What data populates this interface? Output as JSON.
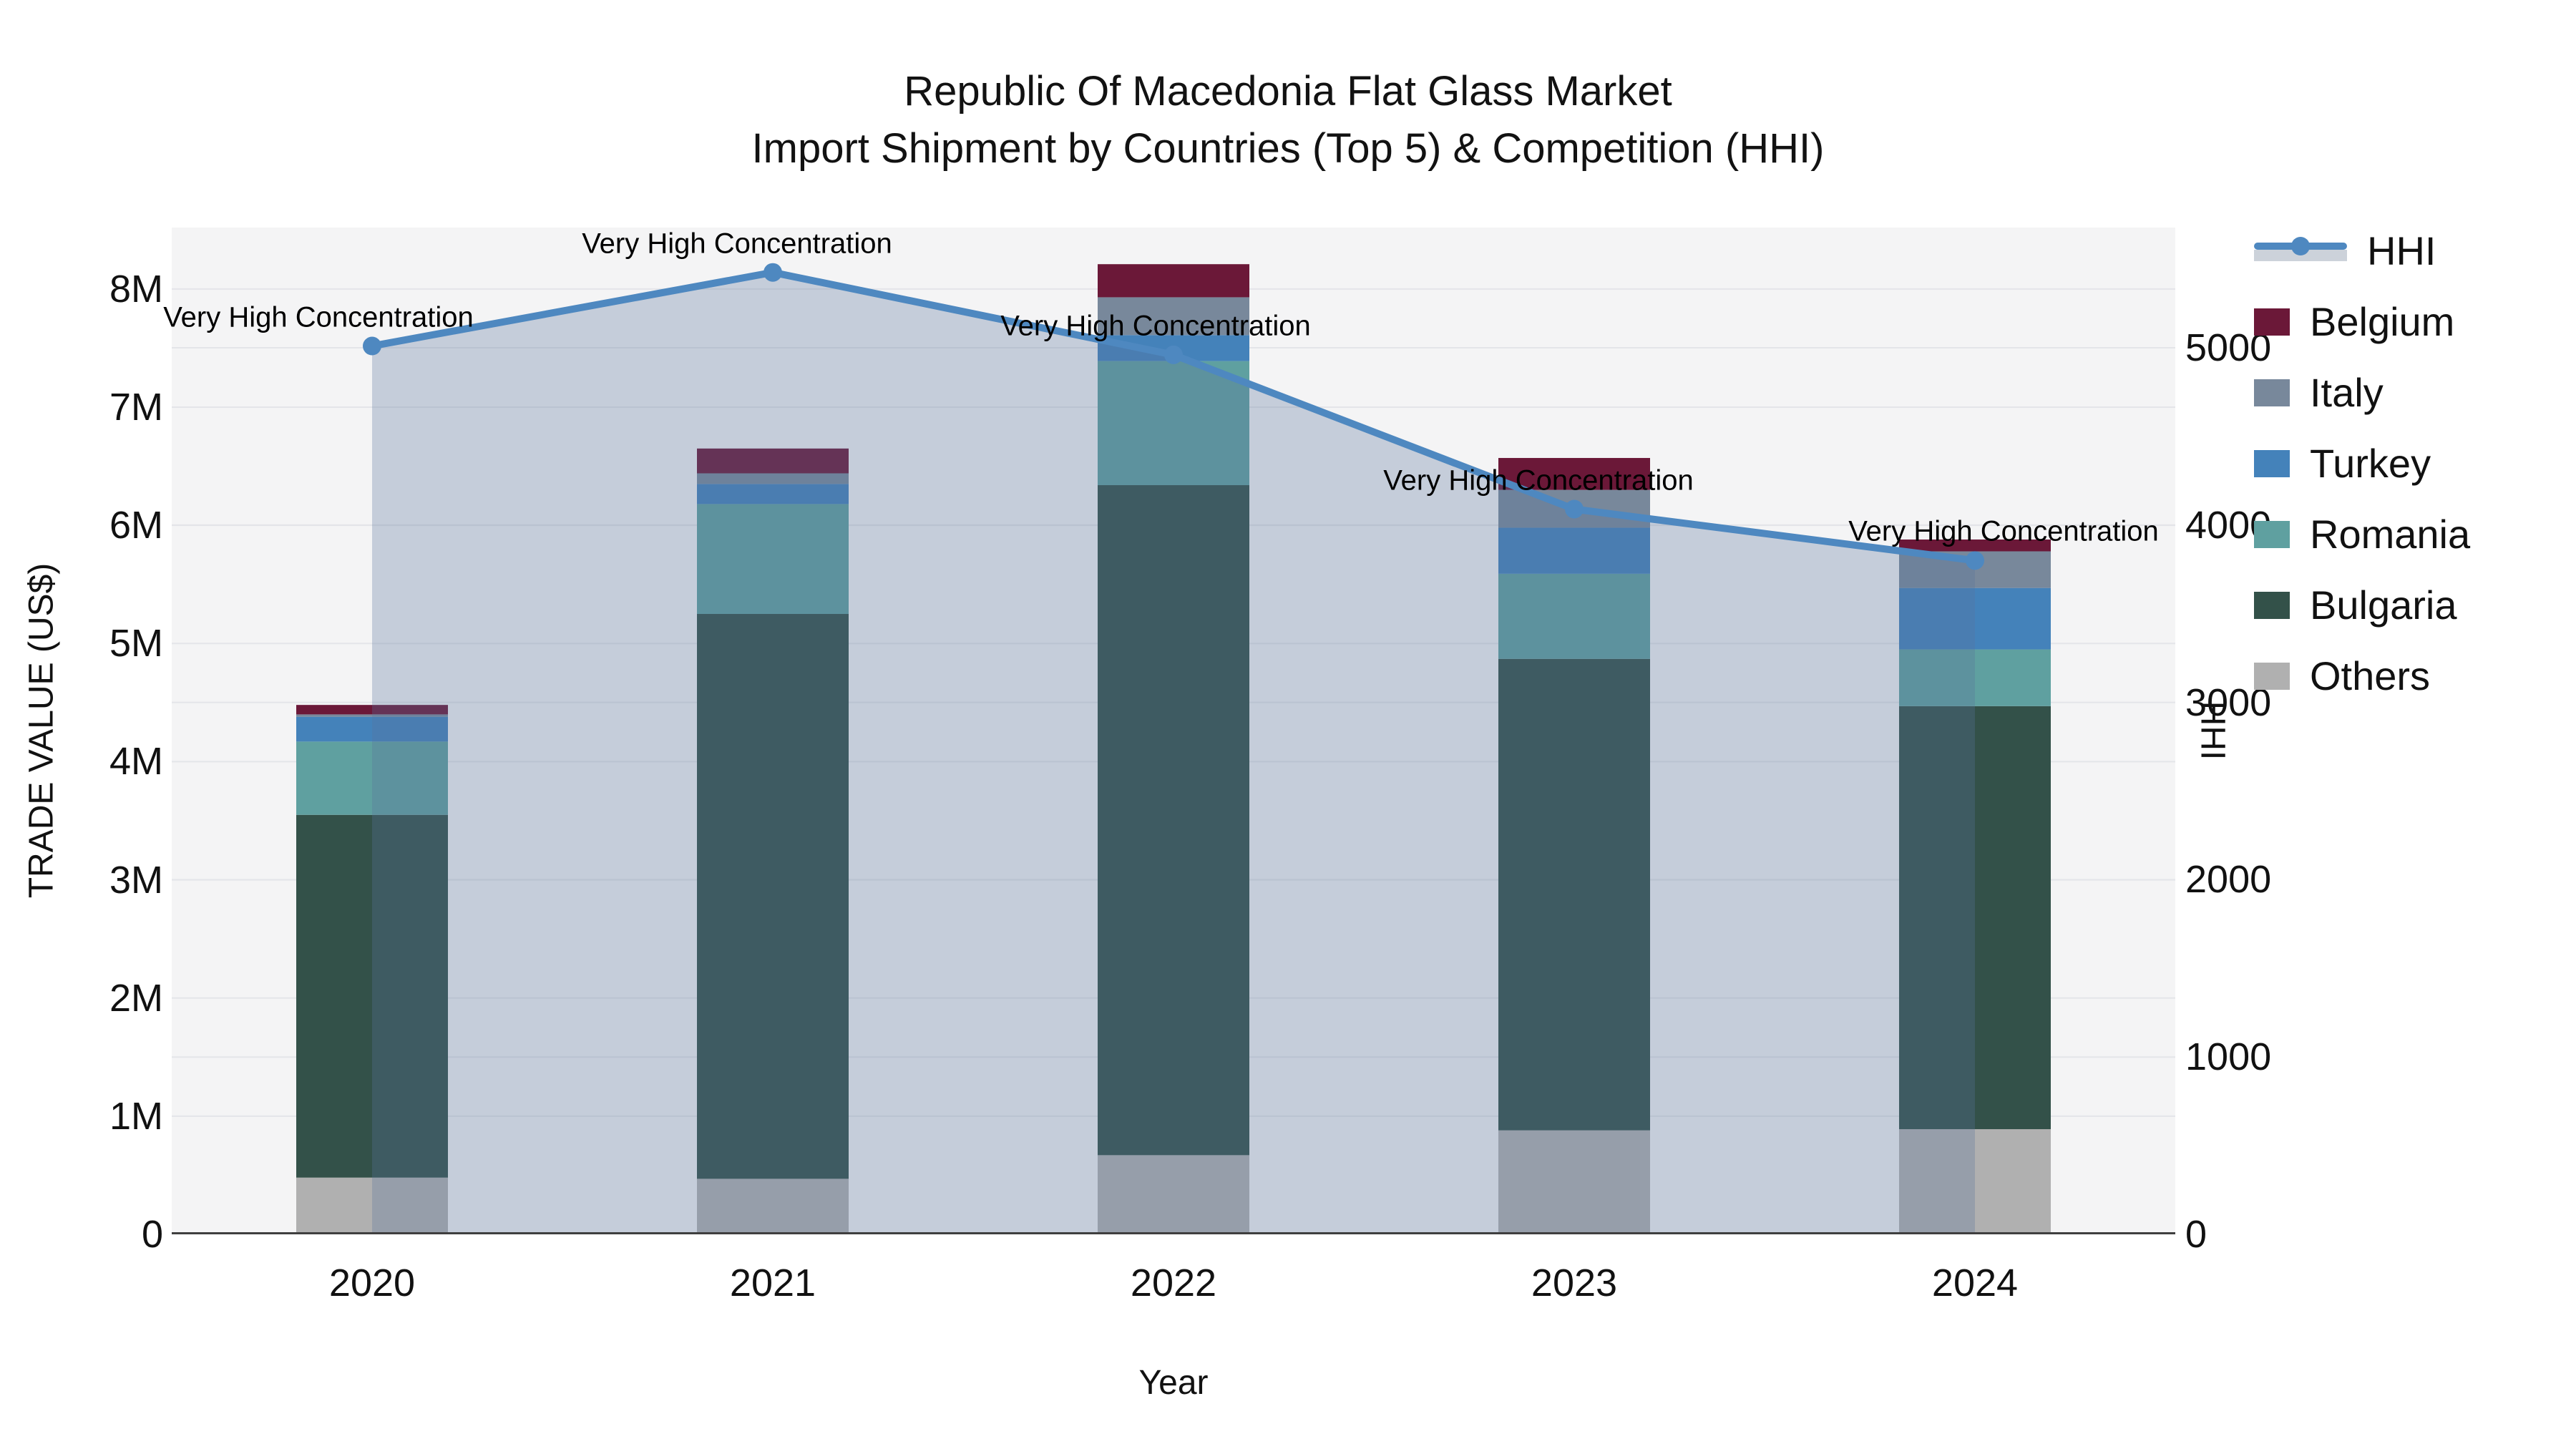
{
  "title": {
    "line1": "Republic Of Macedonia Flat Glass Market",
    "line2": "Import Shipment by Countries (Top 5) & Competition (HHI)"
  },
  "axes": {
    "x": {
      "title": "Year",
      "categories": [
        "2020",
        "2021",
        "2022",
        "2023",
        "2024"
      ]
    },
    "y_left": {
      "title": "TRADE VALUE (US$)",
      "ticks": [
        "0",
        "1M",
        "2M",
        "3M",
        "4M",
        "5M",
        "6M",
        "7M",
        "8M"
      ],
      "max_value_m": 8.52
    },
    "y_right": {
      "title": "HHI",
      "ticks": [
        "0",
        "1000",
        "2000",
        "3000",
        "4000",
        "5000"
      ],
      "max_value": 5678
    }
  },
  "legend": {
    "items": [
      {
        "label": "HHI",
        "type": "line",
        "color": "#4e88c0"
      },
      {
        "label": "Belgium",
        "type": "swatch",
        "color": "#6b1838"
      },
      {
        "label": "Italy",
        "type": "swatch",
        "color": "#78889b"
      },
      {
        "label": "Turkey",
        "type": "swatch",
        "color": "#4482ba"
      },
      {
        "label": "Romania",
        "type": "swatch",
        "color": "#5fa0a0"
      },
      {
        "label": "Bulgaria",
        "type": "swatch",
        "color": "#335149"
      },
      {
        "label": "Others",
        "type": "swatch",
        "color": "#b0b0b0"
      }
    ]
  },
  "chart_data": {
    "type": "bar",
    "subtype": "stacked-bars-with-line",
    "categories": [
      "2020",
      "2021",
      "2022",
      "2023",
      "2024"
    ],
    "value_unit": "US$ millions",
    "stack_order_bottom_to_top": [
      "Others",
      "Bulgaria",
      "Romania",
      "Turkey",
      "Italy",
      "Belgium"
    ],
    "series": [
      {
        "name": "Belgium",
        "type": "bar",
        "color": "#6b1838",
        "values": [
          0.08,
          0.21,
          0.28,
          0.27,
          0.1
        ]
      },
      {
        "name": "Italy",
        "type": "bar",
        "color": "#78889b",
        "values": [
          0.02,
          0.09,
          0.32,
          0.32,
          0.31
        ]
      },
      {
        "name": "Turkey",
        "type": "bar",
        "color": "#4482ba",
        "values": [
          0.21,
          0.17,
          0.22,
          0.39,
          0.52
        ]
      },
      {
        "name": "Romania",
        "type": "bar",
        "color": "#5fa0a0",
        "values": [
          0.62,
          0.93,
          1.05,
          0.72,
          0.48
        ]
      },
      {
        "name": "Bulgaria",
        "type": "bar",
        "color": "#335149",
        "values": [
          3.07,
          4.78,
          5.67,
          3.99,
          3.58
        ]
      },
      {
        "name": "Others",
        "type": "bar",
        "color": "#b0b0b0",
        "values": [
          0.48,
          0.47,
          0.67,
          0.88,
          0.89
        ]
      }
    ],
    "stack_totals_m": [
      4.48,
      6.65,
      8.21,
      6.57,
      5.88
    ],
    "hhi_line": {
      "name": "HHI",
      "type": "line",
      "color": "#4e88c0",
      "area_fill": "rgba(88,115,155,0.30)",
      "values": [
        5010,
        5425,
        4960,
        4090,
        3800
      ]
    },
    "annotations": [
      "Very High Concentration",
      "Very High Concentration",
      "Very High Concentration",
      "Very High Concentration",
      "Very High Concentration"
    ],
    "title": "Republic Of Macedonia Flat Glass Market — Import Shipment by Countries (Top 5) & Competition (HHI)",
    "xlabel": "Year",
    "ylabel": "TRADE VALUE (US$)",
    "y2label": "HHI",
    "ylim_m": [
      0,
      8.52
    ],
    "y2lim": [
      0,
      5678
    ],
    "grid": true,
    "legend_position": "top-right"
  }
}
